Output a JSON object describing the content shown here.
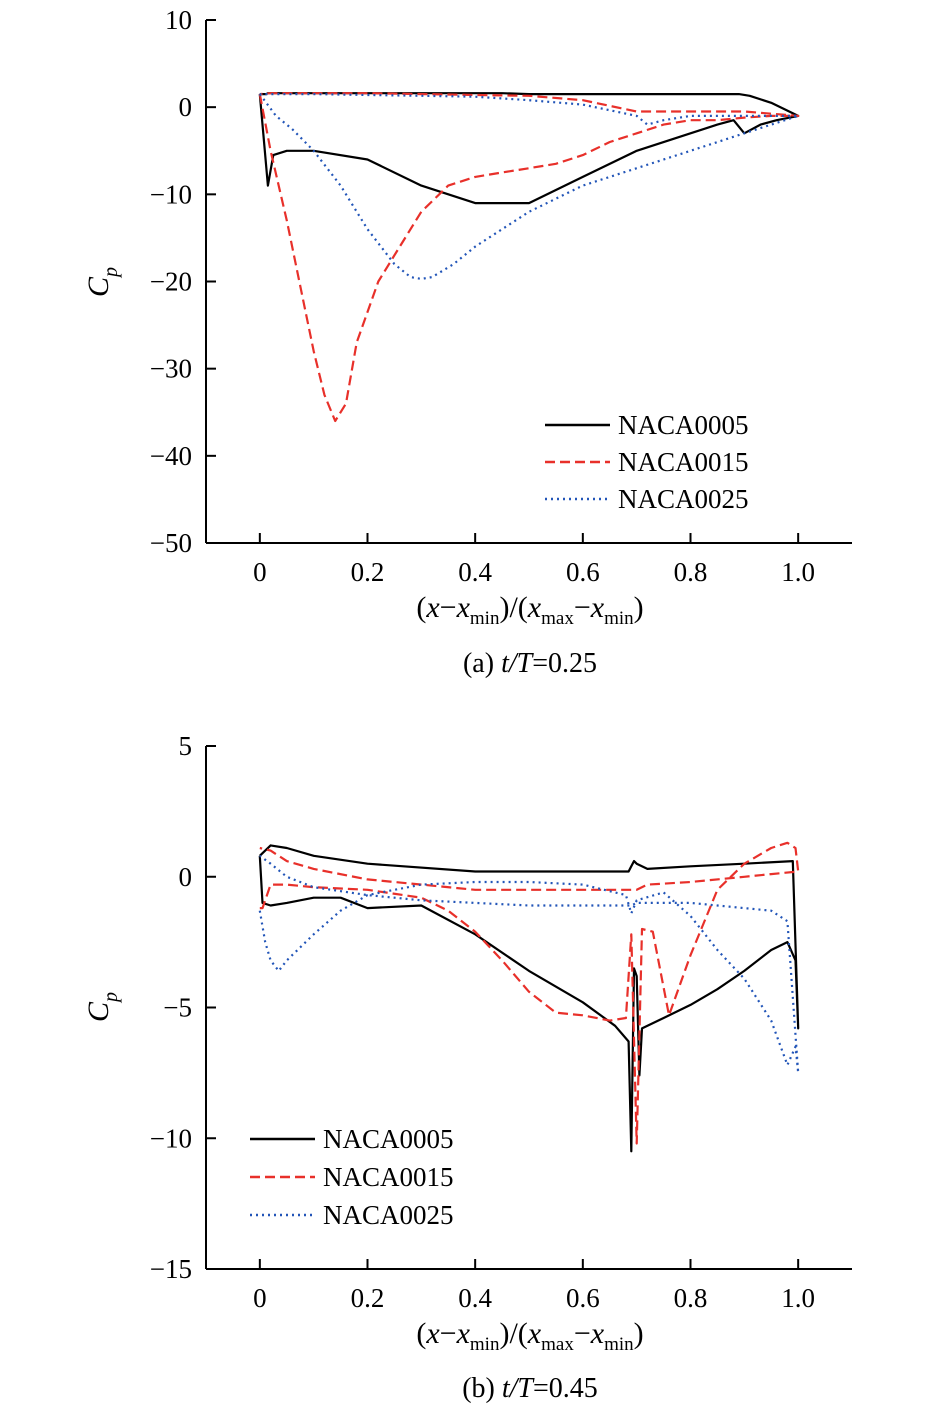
{
  "chart_data": [
    {
      "type": "line",
      "caption_prefix": "(a) ",
      "caption_var": "t/T",
      "caption_value": "=0.25",
      "ylabel_main": "C",
      "ylabel_sub": "p",
      "xlabel": "(x−xmin)/(xmax−xmin)",
      "xlim": [
        -0.1,
        1.1
      ],
      "ylim": [
        -50,
        10
      ],
      "xticks": [
        0,
        0.2,
        0.4,
        0.6,
        0.8,
        1.0
      ],
      "xtick_labels": [
        "0",
        "0.2",
        "0.4",
        "0.6",
        "0.8",
        "1.0"
      ],
      "yticks": [
        10,
        0,
        -10,
        -20,
        -30,
        -40,
        -50
      ],
      "ytick_labels": [
        "10",
        "0",
        "−10",
        "−20",
        "−30",
        "−40",
        "−50"
      ],
      "legend_position": "lower-right",
      "series": [
        {
          "name": "NACA0005",
          "color": "#000000",
          "dash": "",
          "x": [
            0.0,
            0.005,
            0.015,
            0.025,
            0.05,
            0.1,
            0.2,
            0.3,
            0.4,
            0.5,
            0.6,
            0.7,
            0.8,
            0.85,
            0.88,
            0.9,
            0.93,
            0.96,
            1.0,
            0.95,
            0.91,
            0.89,
            0.85,
            0.75,
            0.6,
            0.5,
            0.45,
            0.4,
            0.3,
            0.2,
            0.1,
            0.03,
            0.02,
            0.015,
            0.012,
            0.0
          ],
          "y": [
            1.5,
            -2,
            -9,
            -5.5,
            -5,
            -5,
            -6,
            -9,
            -11,
            -11,
            -8,
            -5,
            -3,
            -2,
            -1.5,
            -3,
            -2,
            -1.5,
            -1,
            0.5,
            1.3,
            1.5,
            1.5,
            1.5,
            1.5,
            1.5,
            1.6,
            1.6,
            1.6,
            1.6,
            1.6,
            1.6,
            1.6,
            1.6,
            1.5,
            1.5
          ]
        },
        {
          "name": "NACA0015",
          "color": "#e8302a",
          "dash": "10,5",
          "x": [
            0.0,
            0.02,
            0.05,
            0.08,
            0.1,
            0.12,
            0.14,
            0.16,
            0.18,
            0.22,
            0.25,
            0.3,
            0.35,
            0.4,
            0.45,
            0.5,
            0.55,
            0.6,
            0.65,
            0.7,
            0.75,
            0.8,
            0.85,
            0.9,
            0.95,
            1.0,
            0.9,
            0.8,
            0.7,
            0.6,
            0.5,
            0.4,
            0.3,
            0.2,
            0.1,
            0.05,
            0.02,
            0.0
          ],
          "y": [
            1.5,
            -5,
            -13,
            -22,
            -28,
            -33,
            -36,
            -34,
            -27,
            -20,
            -17,
            -12,
            -9,
            -8,
            -7.5,
            -7,
            -6.5,
            -5.5,
            -4,
            -3,
            -2,
            -1.5,
            -1.5,
            -1.2,
            -1,
            -1,
            -0.5,
            -0.5,
            -0.5,
            0.8,
            1.3,
            1.4,
            1.5,
            1.6,
            1.6,
            1.6,
            1.6,
            1.5
          ]
        },
        {
          "name": "NACA0025",
          "color": "#2255b8",
          "dash": "2,4",
          "x": [
            0.0,
            0.03,
            0.06,
            0.1,
            0.15,
            0.2,
            0.25,
            0.28,
            0.3,
            0.32,
            0.36,
            0.4,
            0.45,
            0.5,
            0.6,
            0.7,
            0.8,
            0.9,
            1.0,
            0.9,
            0.8,
            0.75,
            0.72,
            0.7,
            0.6,
            0.5,
            0.4,
            0.3,
            0.2,
            0.1,
            0.05,
            0.02,
            0.0
          ],
          "y": [
            1.5,
            -1,
            -2.5,
            -5,
            -9,
            -14,
            -18,
            -19.5,
            -19.7,
            -19.5,
            -18,
            -16,
            -14,
            -12,
            -9,
            -7,
            -5,
            -3,
            -1,
            -1,
            -1,
            -1.5,
            -2,
            -1,
            0.3,
            0.8,
            1.2,
            1.3,
            1.4,
            1.5,
            1.5,
            1.5,
            1.5
          ]
        }
      ]
    },
    {
      "type": "line",
      "caption_prefix": "(b) ",
      "caption_var": "t/T",
      "caption_value": "=0.45",
      "ylabel_main": "C",
      "ylabel_sub": "p",
      "xlabel": "(x−xmin)/(xmax−xmin)",
      "xlim": [
        -0.1,
        1.1
      ],
      "ylim": [
        -15,
        5
      ],
      "xticks": [
        0,
        0.2,
        0.4,
        0.6,
        0.8,
        1.0
      ],
      "xtick_labels": [
        "0",
        "0.2",
        "0.4",
        "0.6",
        "0.8",
        "1.0"
      ],
      "yticks": [
        5,
        0,
        -5,
        -10,
        -15
      ],
      "ytick_labels": [
        "5",
        "0",
        "−5",
        "−10",
        "−15"
      ],
      "legend_position": "lower-left",
      "series": [
        {
          "name": "NACA0005",
          "color": "#000000",
          "dash": "",
          "x": [
            0.0,
            0.005,
            0.02,
            0.05,
            0.1,
            0.15,
            0.2,
            0.3,
            0.4,
            0.5,
            0.6,
            0.66,
            0.685,
            0.69,
            0.695,
            0.7,
            0.705,
            0.71,
            0.75,
            0.8,
            0.85,
            0.9,
            0.95,
            0.98,
            0.995,
            1.0,
            0.99,
            0.9,
            0.8,
            0.72,
            0.7,
            0.695,
            0.69,
            0.685,
            0.6,
            0.4,
            0.2,
            0.1,
            0.05,
            0.02,
            0.005,
            0.0
          ],
          "y": [
            0.8,
            -1,
            -1.1,
            -1,
            -0.8,
            -0.8,
            -1.2,
            -1.1,
            -2.2,
            -3.6,
            -4.8,
            -5.7,
            -6.3,
            -10.5,
            -3.5,
            -3.8,
            -7.6,
            -5.8,
            -5.4,
            -4.9,
            -4.3,
            -3.6,
            -2.8,
            -2.5,
            -3.2,
            -5.8,
            0.6,
            0.5,
            0.4,
            0.3,
            0.5,
            0.6,
            0.4,
            0.2,
            0.2,
            0.2,
            0.5,
            0.8,
            1.1,
            1.2,
            0.9,
            0.8
          ]
        },
        {
          "name": "NACA0015",
          "color": "#e8302a",
          "dash": "10,5",
          "x": [
            0.0,
            0.005,
            0.02,
            0.05,
            0.1,
            0.2,
            0.3,
            0.35,
            0.4,
            0.45,
            0.5,
            0.55,
            0.6,
            0.65,
            0.68,
            0.69,
            0.7,
            0.71,
            0.73,
            0.76,
            0.8,
            0.85,
            0.9,
            0.95,
            0.98,
            0.995,
            1.0,
            0.95,
            0.9,
            0.8,
            0.72,
            0.7,
            0.69,
            0.6,
            0.4,
            0.2,
            0.1,
            0.05,
            0.02,
            0.0
          ],
          "y": [
            -1.2,
            -1.2,
            -0.3,
            -0.3,
            -0.4,
            -0.5,
            -0.8,
            -1.3,
            -2.1,
            -3.2,
            -4.4,
            -5.2,
            -5.3,
            -5.5,
            -5.4,
            -2.2,
            -10.2,
            -2,
            -2.1,
            -5.3,
            -3,
            -0.5,
            0.5,
            1.1,
            1.3,
            1.1,
            0.2,
            0.1,
            0,
            -0.2,
            -0.3,
            -0.5,
            -0.5,
            -0.5,
            -0.5,
            -0.1,
            0.3,
            0.6,
            1.0,
            1.1
          ]
        },
        {
          "name": "NACA0025",
          "color": "#2255b8",
          "dash": "2,4",
          "x": [
            0.0,
            0.01,
            0.02,
            0.035,
            0.05,
            0.1,
            0.15,
            0.2,
            0.3,
            0.4,
            0.5,
            0.6,
            0.68,
            0.69,
            0.7,
            0.75,
            0.8,
            0.85,
            0.9,
            0.95,
            0.98,
            0.995,
            1.0,
            0.98,
            0.95,
            0.9,
            0.85,
            0.8,
            0.72,
            0.7,
            0.69,
            0.6,
            0.5,
            0.4,
            0.3,
            0.2,
            0.1,
            0.05,
            0.02,
            0.0
          ],
          "y": [
            -1.3,
            -2.5,
            -3.2,
            -3.6,
            -3.2,
            -2.2,
            -1.3,
            -0.7,
            -0.3,
            -0.2,
            -0.2,
            -0.3,
            -0.7,
            -1.4,
            -0.9,
            -0.6,
            -1.5,
            -2.8,
            -3.9,
            -5.5,
            -7.2,
            -6.5,
            -7.5,
            -1.7,
            -1.3,
            -1.2,
            -1.1,
            -1,
            -1,
            -1,
            -1.1,
            -1.1,
            -1.1,
            -1,
            -0.9,
            -0.7,
            -0.4,
            0,
            0.5,
            0.8
          ]
        }
      ]
    }
  ]
}
